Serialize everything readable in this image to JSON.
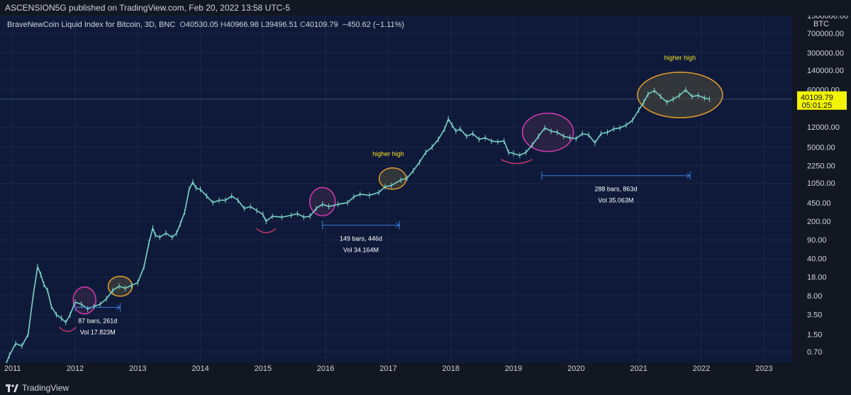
{
  "header": {
    "title": "ASCENSION5G published on TradingView.com, Feb 20, 2022 13:58 UTC-5"
  },
  "legend": {
    "name": "BraveNewCoin Liquid Index for Bitcoin, 3D, BNC",
    "o_label": "O",
    "o": "40530.05",
    "h_label": "H",
    "h": "40966.98",
    "l_label": "L",
    "l": "39496.51",
    "c_label": "C",
    "c": "40109.79",
    "change": "−450.62 (−1.11%)"
  },
  "footer": {
    "brand": "TradingView"
  },
  "colors": {
    "background": "#0f1a3a",
    "candle": "#7ad3c8",
    "magenta": "#d43bb0",
    "orange": "#e09a2e",
    "measure": "#3b78d8",
    "price_label": "#f3f305",
    "yellow_text": "#f5e02a"
  },
  "chart_data": {
    "type": "line",
    "title": "BraveNewCoin Liquid Index for Bitcoin, 3D, BNC",
    "scale": "log",
    "currency": "BTC",
    "x_ticks": [
      "2011",
      "2012",
      "2013",
      "2014",
      "2015",
      "2016",
      "2017",
      "2018",
      "2019",
      "2020",
      "2021",
      "2022",
      "2023"
    ],
    "y_ticks": [
      "1500000.00",
      "700000.00",
      "300000.00",
      "140000.00",
      "60000.00",
      "12000.00",
      "5000.00",
      "2250.00",
      "1050.00",
      "450.00",
      "200.00",
      "90.00",
      "40.00",
      "18.00",
      "8.00",
      "3.50",
      "1.50",
      "0.70"
    ],
    "ylim": [
      0.5,
      1500000
    ],
    "xlim": [
      2010.8,
      2023.45
    ],
    "series": [
      {
        "name": "BTC price",
        "x": [
          2010.85,
          2010.95,
          2011.05,
          2011.15,
          2011.25,
          2011.33,
          2011.4,
          2011.45,
          2011.5,
          2011.56,
          2011.62,
          2011.7,
          2011.78,
          2011.85,
          2011.92,
          2012.0,
          2012.1,
          2012.2,
          2012.3,
          2012.4,
          2012.5,
          2012.6,
          2012.7,
          2012.8,
          2012.9,
          2013.0,
          2013.1,
          2013.18,
          2013.24,
          2013.28,
          2013.35,
          2013.45,
          2013.55,
          2013.62,
          2013.68,
          2013.75,
          2013.82,
          2013.88,
          2013.93,
          2014.0,
          2014.1,
          2014.2,
          2014.3,
          2014.4,
          2014.5,
          2014.6,
          2014.7,
          2014.8,
          2014.9,
          2015.0,
          2015.05,
          2015.15,
          2015.3,
          2015.45,
          2015.55,
          2015.65,
          2015.75,
          2015.85,
          2015.95,
          2016.05,
          2016.2,
          2016.35,
          2016.45,
          2016.55,
          2016.7,
          2016.85,
          2016.95,
          2017.05,
          2017.2,
          2017.3,
          2017.4,
          2017.5,
          2017.6,
          2017.7,
          2017.8,
          2017.9,
          2017.96,
          2018.02,
          2018.08,
          2018.15,
          2018.25,
          2018.35,
          2018.45,
          2018.55,
          2018.65,
          2018.75,
          2018.85,
          2018.92,
          2019.0,
          2019.1,
          2019.2,
          2019.3,
          2019.4,
          2019.5,
          2019.6,
          2019.7,
          2019.8,
          2019.9,
          2020.0,
          2020.1,
          2020.2,
          2020.3,
          2020.4,
          2020.5,
          2020.6,
          2020.7,
          2020.8,
          2020.9,
          2021.0,
          2021.08,
          2021.15,
          2021.25,
          2021.35,
          2021.45,
          2021.55,
          2021.65,
          2021.75,
          2021.85,
          2021.95,
          2022.05,
          2022.13
        ],
        "values": [
          0.3,
          0.6,
          1.0,
          0.9,
          1.5,
          8,
          28,
          20,
          13,
          10,
          5,
          3.5,
          3.0,
          2.5,
          3.5,
          6,
          5.5,
          4.5,
          5,
          5.5,
          7,
          10,
          12,
          11,
          12.5,
          14,
          28,
          80,
          150,
          110,
          100,
          120,
          100,
          120,
          180,
          300,
          800,
          1100,
          850,
          800,
          600,
          450,
          500,
          500,
          600,
          500,
          350,
          380,
          320,
          270,
          200,
          250,
          240,
          260,
          280,
          240,
          250,
          350,
          420,
          380,
          420,
          450,
          580,
          650,
          620,
          700,
          900,
          950,
          1200,
          1300,
          1800,
          2600,
          4000,
          5000,
          7000,
          11000,
          17000,
          13000,
          10000,
          11000,
          8000,
          9000,
          7000,
          7500,
          6500,
          6300,
          6500,
          4000,
          3800,
          3500,
          4000,
          5500,
          8000,
          11500,
          10000,
          9500,
          8000,
          7500,
          7200,
          9000,
          8500,
          6000,
          9000,
          9500,
          11000,
          11500,
          13000,
          16000,
          25000,
          35000,
          50000,
          58000,
          45000,
          35000,
          40000,
          47000,
          60000,
          45000,
          47000,
          42000,
          40110
        ]
      }
    ],
    "last_price": "40109.79",
    "countdown": "05:01:25",
    "annotations": [
      {
        "type": "measure",
        "label": "87 bars, 261d",
        "vol": "Vol 17.823M",
        "from": 2012.0,
        "to": 2012.72,
        "price": 4.8
      },
      {
        "type": "measure",
        "label": "149 bars, 446d",
        "vol": "Vol 34.164M",
        "from": 2015.95,
        "to": 2017.18,
        "price": 170
      },
      {
        "type": "measure",
        "label": "288 bars, 863d",
        "vol": "Vol 35.063M",
        "from": 2019.45,
        "to": 2021.82,
        "price": 1450
      },
      {
        "type": "text",
        "label": "higher high",
        "x": 2017.0,
        "price": 3400
      },
      {
        "type": "text",
        "label": "higher high",
        "x": 2021.66,
        "price": 220000
      }
    ]
  }
}
